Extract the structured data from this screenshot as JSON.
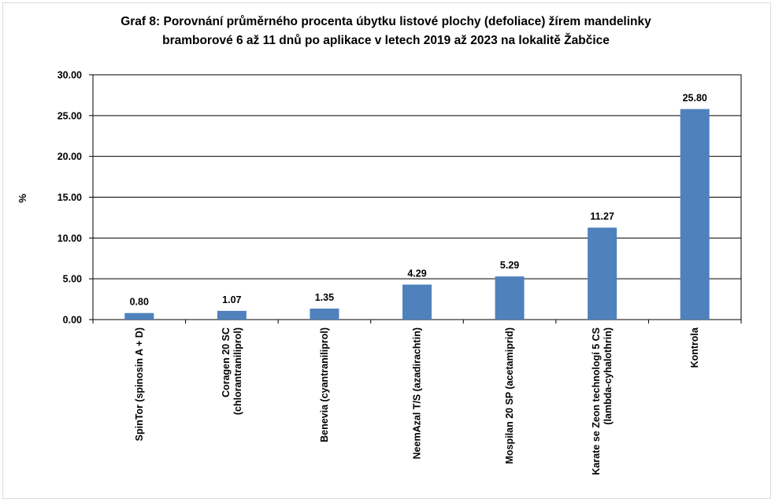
{
  "chart_data": {
    "type": "bar",
    "title_lines": [
      "Graf 8: Porovnání průměrného procenta úbytku listové plochy (defoliace) žírem mandelinky",
      "bramborové 6 až 11 dnů po aplikace v letech 2019 až 2023 na lokalitě Žabčice"
    ],
    "ylabel": "%",
    "xlabel": "",
    "ylim": [
      0,
      30
    ],
    "ytick_step": 5,
    "ytick_labels": [
      "0.00",
      "5.00",
      "10.00",
      "15.00",
      "20.00",
      "25.00",
      "30.00"
    ],
    "grid": true,
    "legend": "none",
    "bar_color": "#4f81bd",
    "categories": [
      [
        "SpinTor (spinosin A + D)"
      ],
      [
        "Coragen 20 SC",
        "(chlorantraniliprol)"
      ],
      [
        "Benevia (cyantraniliprol)"
      ],
      [
        "NeemAzal T/S (azadirachtin)"
      ],
      [
        "Mospilan 20 SP (acetamiprid)"
      ],
      [
        "Karate se Zeon technologí 5 CS",
        "(lambda-cyhalothrin)"
      ],
      [
        "Kontrola"
      ]
    ],
    "values": [
      0.8,
      1.07,
      1.35,
      4.29,
      5.29,
      11.27,
      25.8
    ],
    "data_labels": [
      "0.80",
      "1.07",
      "1.35",
      "4.29",
      "5.29",
      "11.27",
      "25.80"
    ]
  }
}
